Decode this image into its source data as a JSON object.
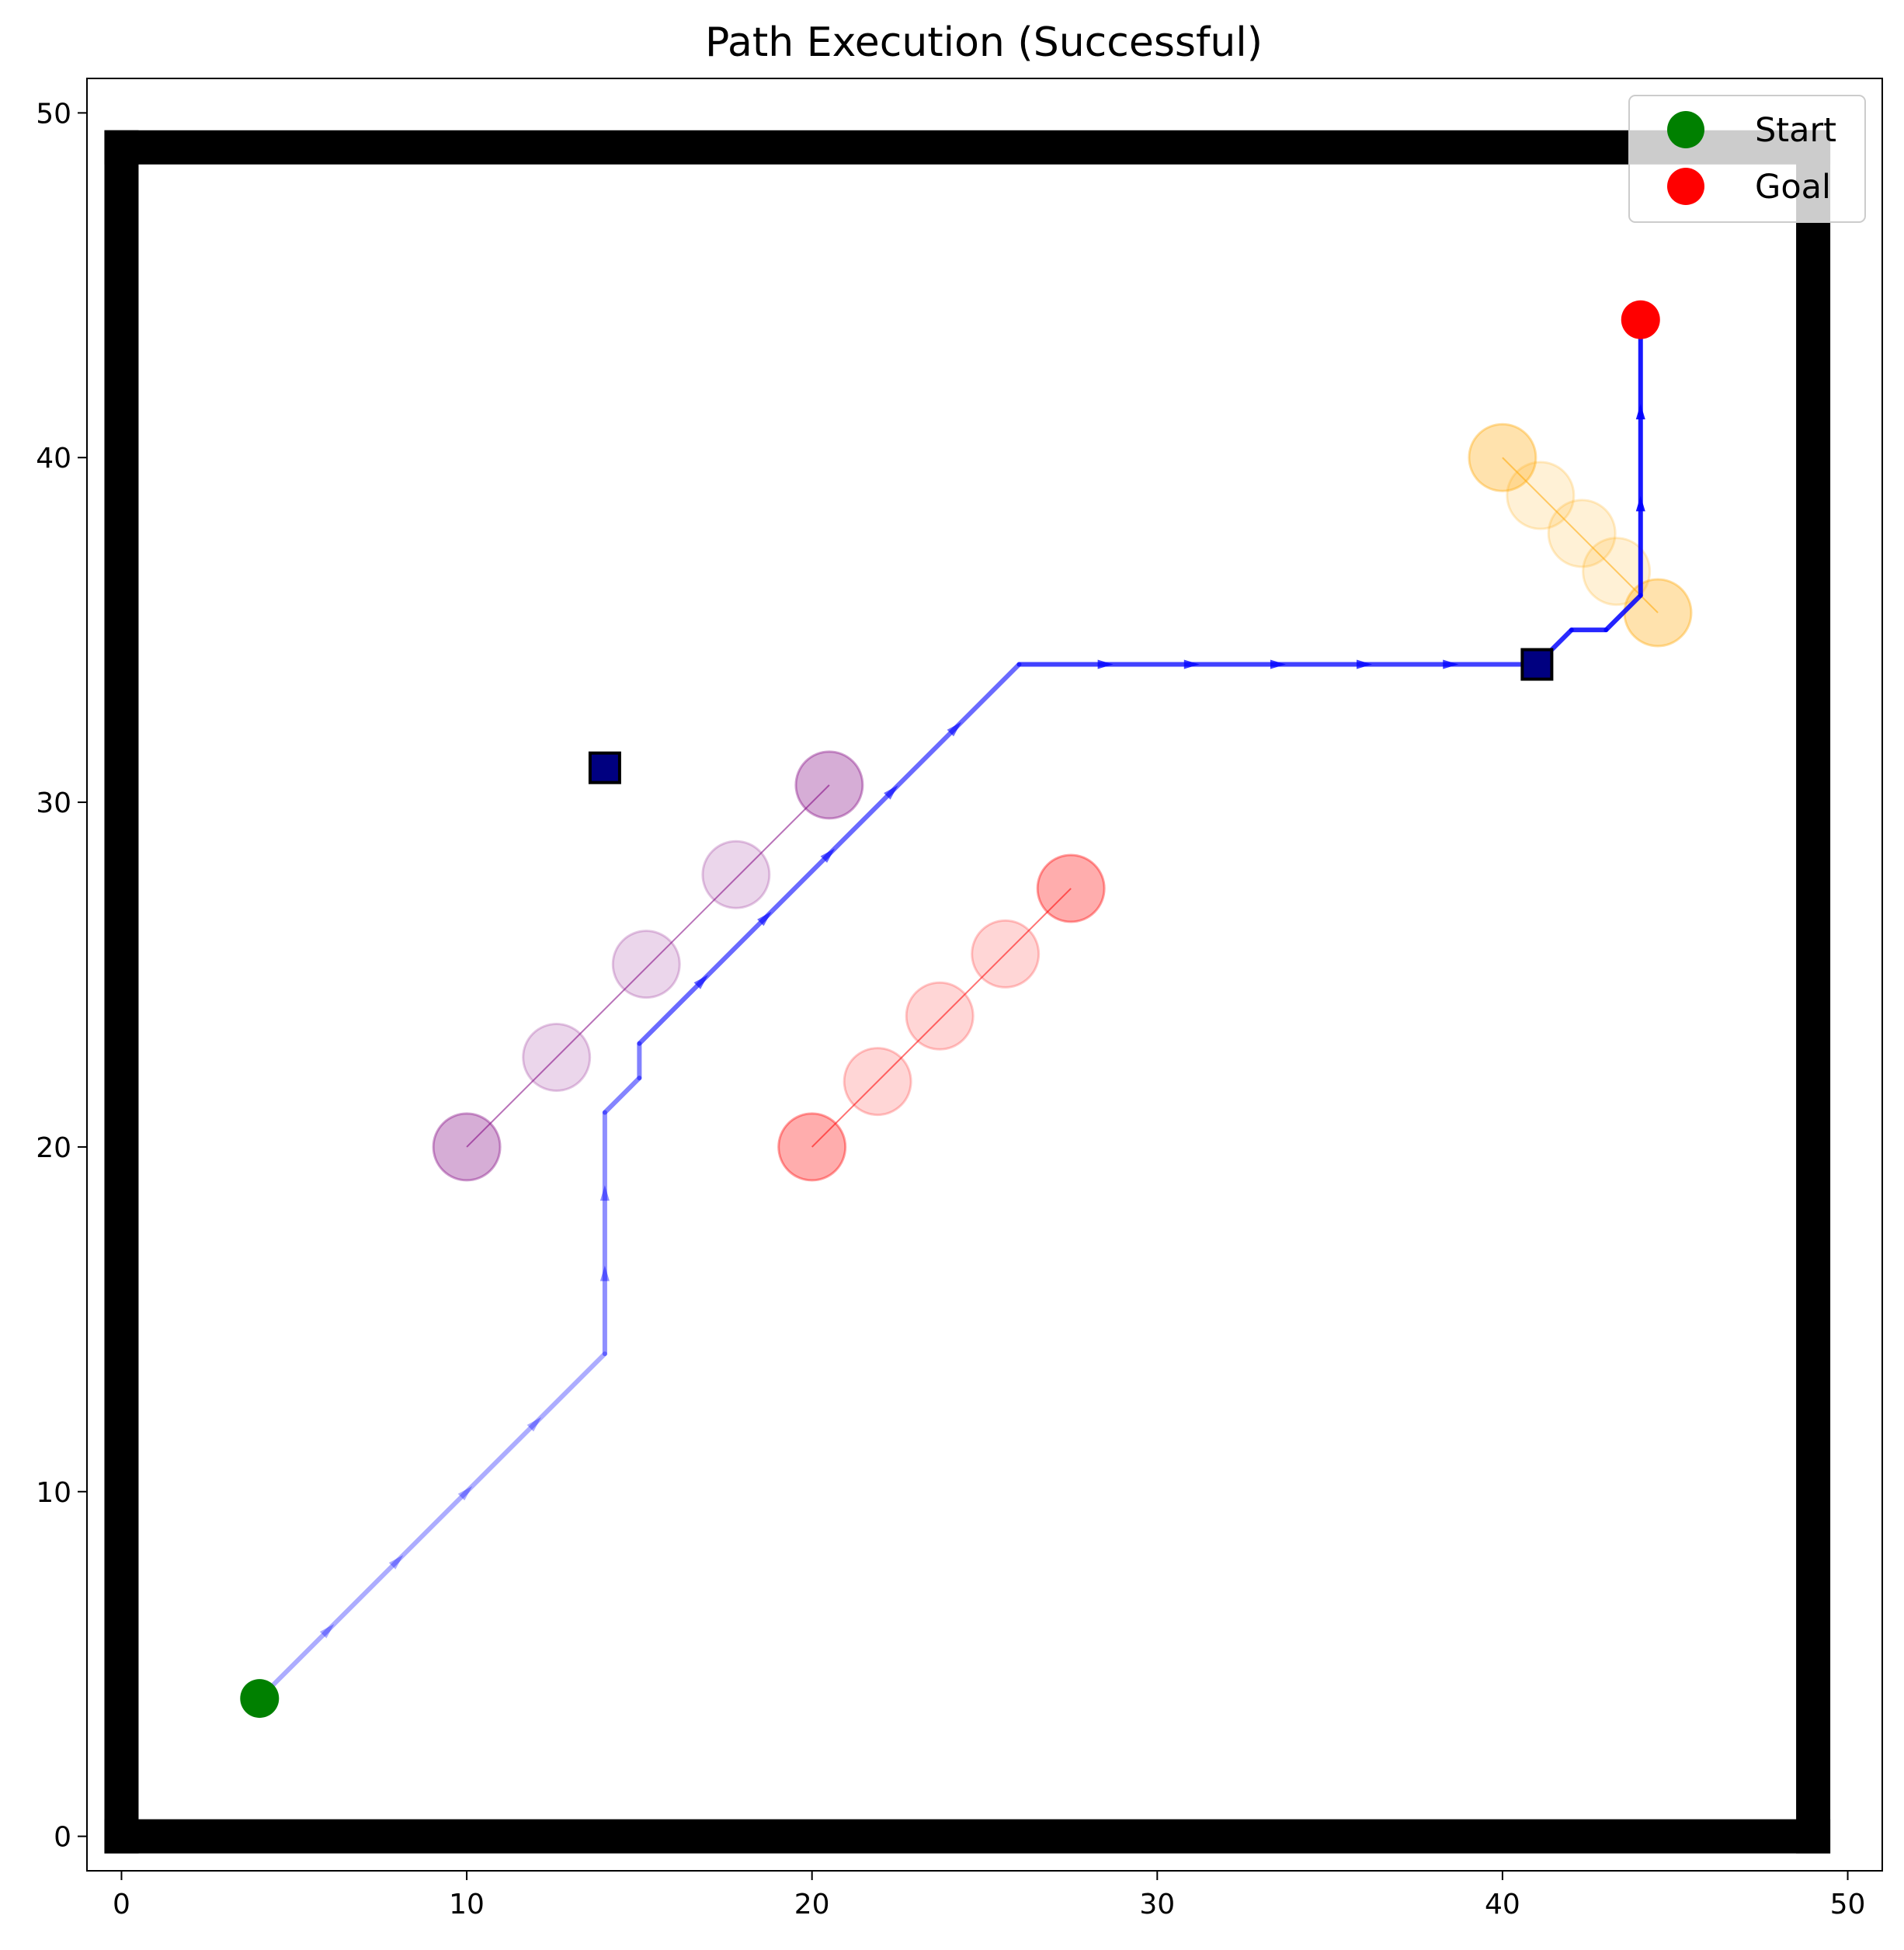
{
  "chart_data": {
    "type": "scatter",
    "title": "Path Execution (Successful)",
    "xlabel": "",
    "ylabel": "",
    "xlim": [
      -1,
      51
    ],
    "ylim": [
      -1,
      51
    ],
    "xticks": [
      "0",
      "10",
      "20",
      "30",
      "40",
      "50"
    ],
    "yticks": [
      "0",
      "10",
      "20",
      "30",
      "40",
      "50"
    ],
    "grid": false,
    "legend": {
      "placement": "top-right",
      "entries": [
        {
          "label": "Start",
          "color": "#008000"
        },
        {
          "label": "Goal",
          "color": "#ff0000"
        }
      ]
    },
    "walls": {
      "color": "#000000",
      "segments": [
        [
          [
            0,
            0
          ],
          [
            49,
            0
          ]
        ],
        [
          [
            49,
            0
          ],
          [
            49,
            49
          ]
        ],
        [
          [
            49,
            49
          ],
          [
            0,
            49
          ]
        ],
        [
          [
            0,
            49
          ],
          [
            0,
            0
          ]
        ]
      ]
    },
    "static_obstacles": {
      "color": "#000080",
      "points": [
        [
          14,
          31
        ],
        [
          41,
          34
        ]
      ]
    },
    "start": [
      4,
      4
    ],
    "goal": [
      44,
      44
    ],
    "path": {
      "color": "#0000ff",
      "points": [
        [
          4,
          4
        ],
        [
          14,
          14
        ],
        [
          14,
          21
        ],
        [
          15,
          22
        ],
        [
          15,
          23
        ],
        [
          26,
          34
        ],
        [
          41,
          34
        ],
        [
          42,
          35
        ],
        [
          43,
          35
        ],
        [
          44,
          36
        ],
        [
          44,
          44
        ]
      ]
    },
    "dynamic_obstacles": [
      {
        "name": "purple",
        "color": "#800080",
        "trajectory": [
          [
            10,
            20
          ],
          [
            12.6,
            22.6
          ],
          [
            15.2,
            25.3
          ],
          [
            17.8,
            27.9
          ],
          [
            20.5,
            30.5
          ]
        ]
      },
      {
        "name": "red",
        "color": "#ff0000",
        "trajectory": [
          [
            20,
            20
          ],
          [
            21.9,
            21.9
          ],
          [
            23.7,
            23.8
          ],
          [
            25.6,
            25.6
          ],
          [
            27.5,
            27.5
          ]
        ]
      },
      {
        "name": "orange",
        "color": "#ffa500",
        "trajectory": [
          [
            40,
            40
          ],
          [
            41.1,
            38.9
          ],
          [
            42.3,
            37.8
          ],
          [
            43.3,
            36.7
          ],
          [
            44.5,
            35.5
          ]
        ]
      }
    ]
  }
}
